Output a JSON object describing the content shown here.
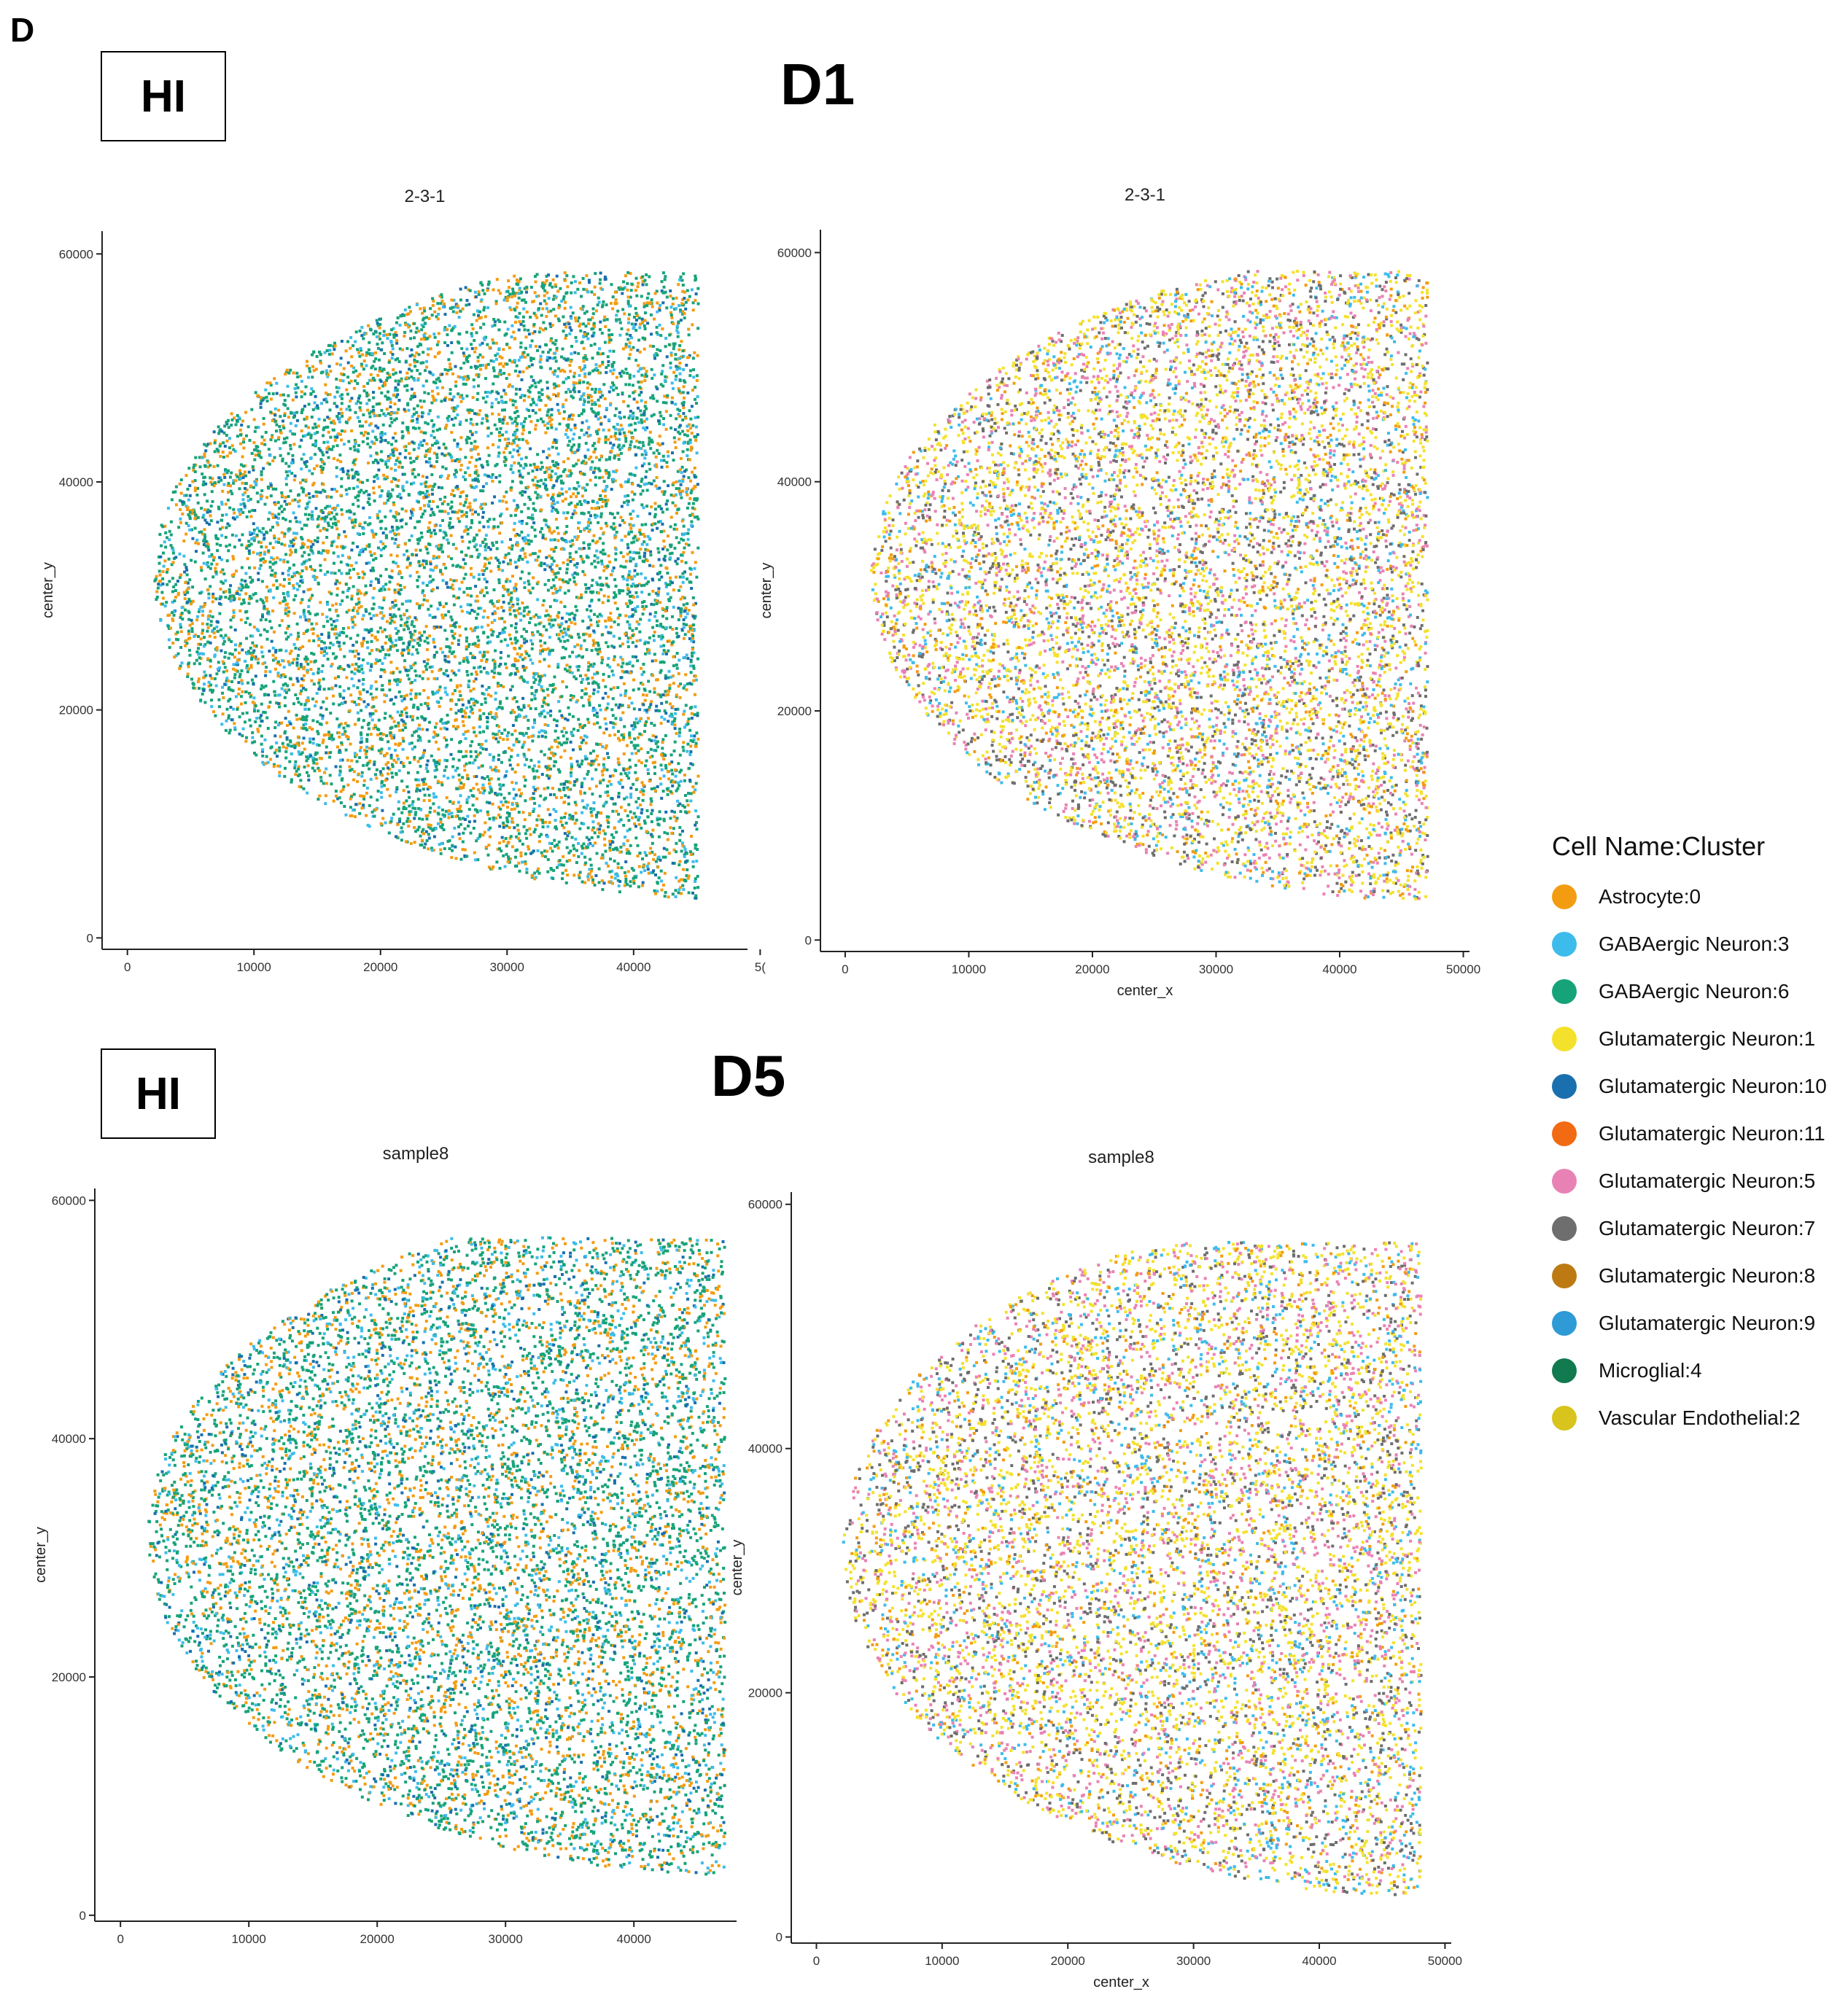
{
  "figure": {
    "panel_letter": "D",
    "row_labels": [
      "D1",
      "D5"
    ],
    "condition_boxes": [
      "HI",
      "HI"
    ]
  },
  "legend": {
    "title": "Cell Name:Cluster",
    "items": [
      {
        "label": "Astrocyte:0",
        "color": "#F39C12"
      },
      {
        "label": "GABAergic Neuron:3",
        "color": "#3DBCEB"
      },
      {
        "label": "GABAergic Neuron:6",
        "color": "#17A37A"
      },
      {
        "label": "Glutamatergic Neuron:1",
        "color": "#F4E12C"
      },
      {
        "label": "Glutamatergic Neuron:10",
        "color": "#1A6FAE"
      },
      {
        "label": "Glutamatergic Neuron:11",
        "color": "#F26A12"
      },
      {
        "label": "Glutamatergic Neuron:5",
        "color": "#E982B4"
      },
      {
        "label": "Glutamatergic Neuron:7",
        "color": "#6E6E6E"
      },
      {
        "label": "Glutamatergic Neuron:8",
        "color": "#BE7A12"
      },
      {
        "label": "Glutamatergic Neuron:9",
        "color": "#2E9AD6"
      },
      {
        "label": "Microglial:4",
        "color": "#117A4E"
      },
      {
        "label": "Vascular Endothelial:2",
        "color": "#D8C41C"
      }
    ]
  },
  "chart_data": [
    {
      "type": "scatter",
      "title": "2-3-1",
      "xlabel": "",
      "ylabel": "center_y",
      "xlim": [
        -2000,
        49000
      ],
      "ylim": [
        -1000,
        62000
      ],
      "xticks": [
        "0",
        "10000",
        "20000",
        "30000",
        "40000",
        "5("
      ],
      "yticks": [
        "0",
        "20000",
        "40000",
        "60000"
      ],
      "dominant_clusters": [
        "GABAergic Neuron:6",
        "Astrocyte:0",
        "GABAergic Neuron:3",
        "Glutamatergic Neuron:10"
      ]
    },
    {
      "type": "scatter",
      "title": "2-3-1",
      "xlabel": "center_x",
      "ylabel": "center_y",
      "xlim": [
        -2000,
        50500
      ],
      "ylim": [
        -1000,
        62000
      ],
      "xticks": [
        "0",
        "10000",
        "20000",
        "30000",
        "40000",
        "50000"
      ],
      "yticks": [
        "0",
        "20000",
        "40000",
        "60000"
      ],
      "dominant_clusters": [
        "Glutamatergic Neuron:1",
        "Glutamatergic Neuron:7",
        "Glutamatergic Neuron:5",
        "GABAergic Neuron:3",
        "Astrocyte:0"
      ]
    },
    {
      "type": "scatter",
      "title": "sample8",
      "xlabel": "",
      "ylabel": "center_y",
      "xlim": [
        -2000,
        48000
      ],
      "ylim": [
        -500,
        61000
      ],
      "xticks": [
        "0",
        "10000",
        "20000",
        "30000",
        "40000"
      ],
      "yticks": [
        "0",
        "20000",
        "40000",
        "60000"
      ],
      "dominant_clusters": [
        "GABAergic Neuron:6",
        "Astrocyte:0",
        "GABAergic Neuron:3",
        "Glutamatergic Neuron:10"
      ]
    },
    {
      "type": "scatter",
      "title": "sample8",
      "xlabel": "center_x",
      "ylabel": "center_y",
      "xlim": [
        -2000,
        50500
      ],
      "ylim": [
        -500,
        61000
      ],
      "xticks": [
        "0",
        "10000",
        "20000",
        "30000",
        "40000",
        "50000"
      ],
      "yticks": [
        "0",
        "20000",
        "40000",
        "60000"
      ],
      "dominant_clusters": [
        "Glutamatergic Neuron:1",
        "Glutamatergic Neuron:7",
        "Glutamatergic Neuron:5",
        "GABAergic Neuron:3",
        "Astrocyte:0"
      ]
    }
  ]
}
